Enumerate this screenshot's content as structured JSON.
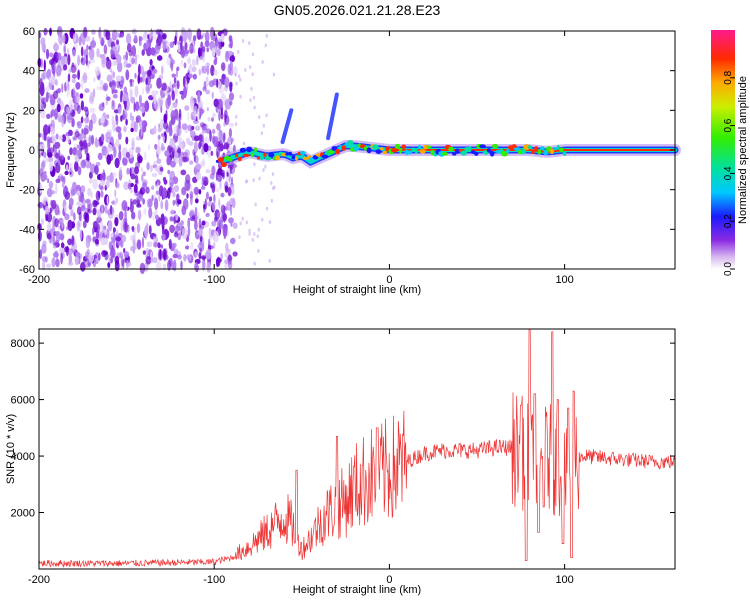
{
  "title": "GN05.2026.021.21.28.E23",
  "chart_data": [
    {
      "type": "heatmap",
      "title": "GN05.2026.021.21.28.E23",
      "xlabel": "Height of straight line (km)",
      "ylabel": "Frequency (Hz)",
      "xlim": [
        -200,
        163
      ],
      "ylim": [
        -60,
        60
      ],
      "x_ticks": [
        -200,
        -100,
        0,
        100
      ],
      "y_ticks": [
        -60,
        -40,
        -20,
        0,
        20,
        40,
        60
      ],
      "noise_region_x": [
        -200,
        -88
      ],
      "trace": {
        "x": [
          -100,
          -90,
          -80,
          -70,
          -60,
          -55,
          -50,
          -45,
          -40,
          -35,
          -30,
          -25,
          -20,
          -10,
          0,
          20,
          40,
          60,
          80,
          90,
          100,
          120,
          140,
          163
        ],
        "y": [
          -7,
          -4,
          -1,
          -3,
          -2,
          -4,
          -3,
          -6,
          -4,
          -2,
          0,
          2,
          2,
          1,
          0,
          0,
          0,
          0,
          0,
          -1,
          0,
          0,
          0,
          0
        ]
      },
      "colorbar": {
        "label": "Normalized spectral amplitude",
        "range": [
          0,
          1
        ],
        "ticks": [
          0.0,
          0.2,
          0.4,
          0.6,
          0.8
        ]
      }
    },
    {
      "type": "line",
      "xlabel": "Height of straight line (km)",
      "ylabel": "SNR (10 * v/v)",
      "xlim": [
        -200,
        163
      ],
      "ylim": [
        0,
        8500
      ],
      "x_ticks": [
        -200,
        -100,
        0,
        100
      ],
      "y_ticks": [
        2000,
        4000,
        6000,
        8000
      ],
      "color": "#ee3333",
      "envelope": {
        "x": [
          -200,
          -150,
          -100,
          -90,
          -80,
          -70,
          -60,
          -55,
          -50,
          -45,
          -40,
          -35,
          -30,
          -25,
          -20,
          -15,
          -10,
          -5,
          0,
          10,
          20,
          30,
          40,
          50,
          60,
          70,
          74,
          78,
          82,
          86,
          90,
          94,
          98,
          102,
          106,
          110,
          130,
          150,
          163
        ],
        "y": [
          200,
          200,
          250,
          400,
          800,
          1300,
          1900,
          1500,
          700,
          1100,
          1600,
          2000,
          2200,
          2400,
          2900,
          3100,
          3300,
          3400,
          3500,
          3800,
          4100,
          4200,
          4200,
          4200,
          4300,
          4300,
          4200,
          4000,
          3800,
          3600,
          4000,
          3800,
          3400,
          3300,
          3900,
          4000,
          3900,
          3800,
          3800
        ]
      },
      "spikes": [
        {
          "x": -53,
          "y": 3500
        },
        {
          "x": -30,
          "y": 4700
        },
        {
          "x": -7,
          "y": 5000
        },
        {
          "x": 75,
          "y": 5800
        },
        {
          "x": 80,
          "y": 8500
        },
        {
          "x": 83,
          "y": 6200
        },
        {
          "x": 93,
          "y": 8400
        },
        {
          "x": 96,
          "y": 6000
        },
        {
          "x": 102,
          "y": 5700
        },
        {
          "x": 105,
          "y": 6300
        }
      ],
      "dips": [
        {
          "x": 78,
          "y": 300
        },
        {
          "x": 85,
          "y": 1300
        },
        {
          "x": 88,
          "y": 2200
        },
        {
          "x": 99,
          "y": 900
        },
        {
          "x": 104,
          "y": 400
        }
      ]
    }
  ]
}
